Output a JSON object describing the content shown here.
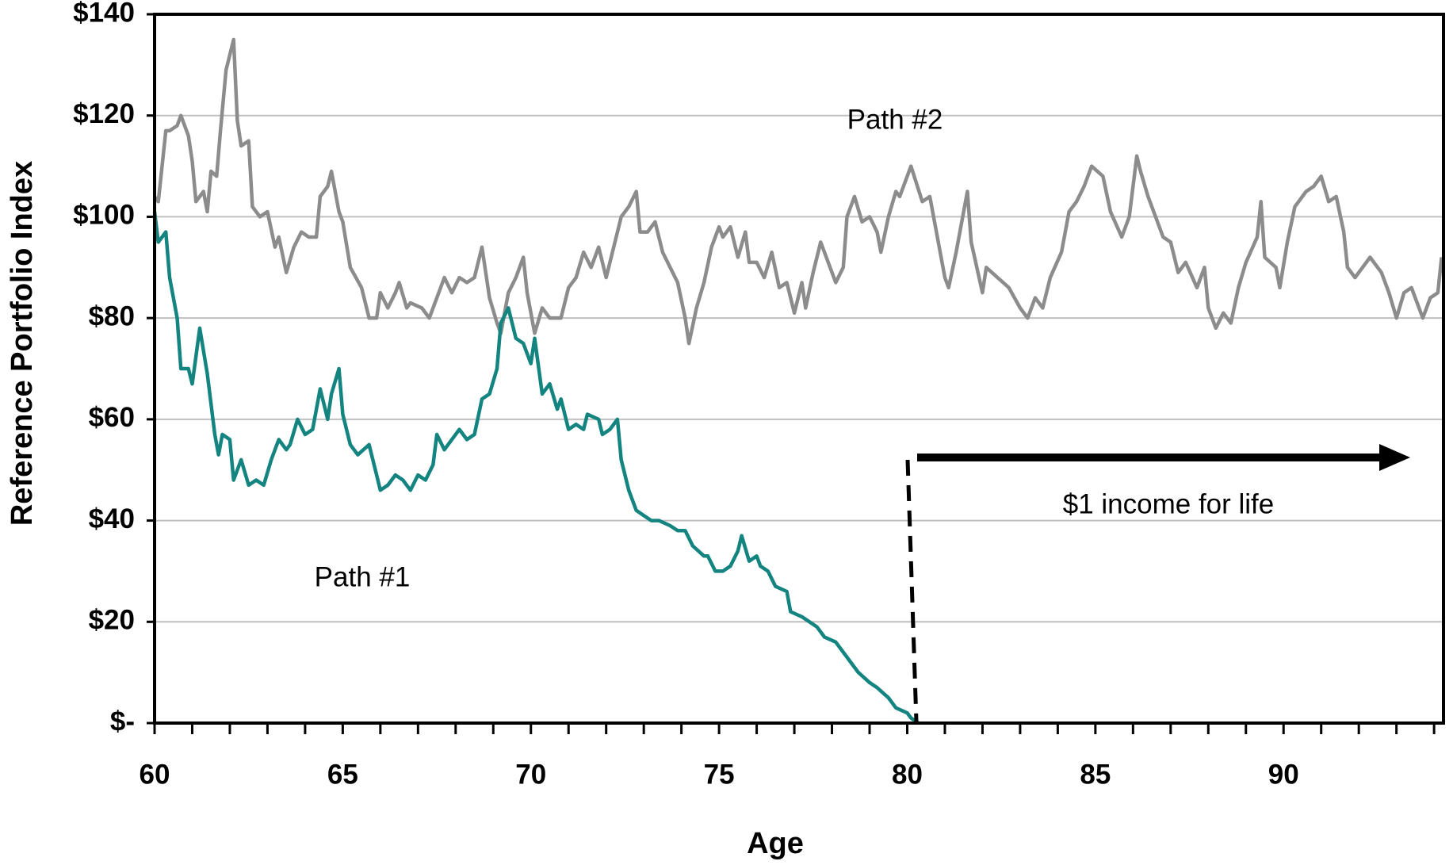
{
  "chart_data": {
    "type": "line",
    "xlabel": "Age",
    "ylabel": "Reference Portfolio Index",
    "xlim": [
      60,
      94.25
    ],
    "xticks": [
      60,
      65,
      70,
      75,
      80,
      85,
      90
    ],
    "xminor_ticks": [
      61,
      62,
      63,
      64,
      66,
      67,
      68,
      69,
      71,
      72,
      73,
      74,
      76,
      77,
      78,
      79,
      81,
      82,
      83,
      84,
      86,
      87,
      88,
      89,
      91,
      92,
      93,
      94
    ],
    "ylim": [
      0,
      140
    ],
    "yticks": [
      {
        "value": 0,
        "label": "$-"
      },
      {
        "value": 20,
        "label": "$20"
      },
      {
        "value": 40,
        "label": "$40"
      },
      {
        "value": 60,
        "label": "$60"
      },
      {
        "value": 80,
        "label": "$80"
      },
      {
        "value": 100,
        "label": "$100"
      },
      {
        "value": 120,
        "label": "$120"
      },
      {
        "value": 140,
        "label": "$140"
      }
    ],
    "grid": true,
    "annotations": [
      "Path #2",
      "Path #1",
      "$1 income for life"
    ],
    "series": [
      {
        "name": "Path #2",
        "color": "#8c8c8c",
        "x": [
          60.0,
          60.1,
          60.3,
          60.4,
          60.6,
          60.7,
          60.9,
          61.0,
          61.1,
          61.3,
          61.4,
          61.5,
          61.65,
          61.75,
          61.9,
          62.1,
          62.2,
          62.3,
          62.5,
          62.6,
          62.8,
          63.0,
          63.2,
          63.3,
          63.5,
          63.7,
          63.9,
          64.1,
          64.3,
          64.4,
          64.6,
          64.7,
          64.9,
          65.0,
          65.2,
          65.5,
          65.7,
          65.9,
          66.0,
          66.2,
          66.4,
          66.5,
          66.7,
          66.8,
          67.1,
          67.3,
          67.5,
          67.7,
          67.9,
          68.1,
          68.3,
          68.5,
          68.7,
          68.9,
          69.1,
          69.2,
          69.4,
          69.6,
          69.8,
          69.9,
          70.1,
          70.3,
          70.5,
          70.8,
          71.0,
          71.2,
          71.4,
          71.6,
          71.8,
          72.0,
          72.2,
          72.4,
          72.6,
          72.8,
          72.9,
          73.1,
          73.3,
          73.5,
          73.7,
          73.9,
          74.1,
          74.2,
          74.4,
          74.6,
          74.8,
          75.0,
          75.1,
          75.3,
          75.5,
          75.7,
          75.8,
          76.0,
          76.2,
          76.4,
          76.6,
          76.8,
          77.0,
          77.2,
          77.3,
          77.5,
          77.7,
          77.9,
          78.1,
          78.3,
          78.4,
          78.6,
          78.8,
          79.0,
          79.2,
          79.3,
          79.5,
          79.7,
          79.8,
          80.0,
          80.1,
          80.4,
          80.6,
          80.8,
          81.0,
          81.1,
          81.3,
          81.6,
          81.7,
          82.0,
          82.1,
          82.4,
          82.7,
          83.0,
          83.2,
          83.4,
          83.6,
          83.8,
          84.1,
          84.3,
          84.5,
          84.7,
          84.9,
          85.2,
          85.4,
          85.7,
          85.9,
          86.1,
          86.2,
          86.4,
          86.6,
          86.8,
          87.0,
          87.2,
          87.4,
          87.7,
          87.9,
          88.0,
          88.2,
          88.4,
          88.6,
          88.8,
          89.0,
          89.3,
          89.4,
          89.5,
          89.8,
          89.9,
          90.1,
          90.3,
          90.6,
          90.8,
          91.0,
          91.2,
          91.4,
          91.6,
          91.7,
          91.9,
          92.1,
          92.3,
          92.6,
          92.8,
          93.0,
          93.2,
          93.4,
          93.7,
          93.9,
          94.1,
          94.2
        ],
        "values": [
          104,
          103,
          117,
          117,
          118,
          120,
          116,
          111,
          103,
          105,
          101,
          109,
          108,
          117,
          129,
          135,
          119,
          114,
          115,
          102,
          100,
          101,
          94,
          96,
          89,
          94,
          97,
          96,
          96,
          104,
          106,
          109,
          101,
          99,
          90,
          86,
          80,
          80,
          85,
          82,
          85,
          87,
          82,
          83,
          82,
          80,
          84,
          88,
          85,
          88,
          87,
          88,
          94,
          84,
          79,
          77,
          85,
          88,
          92,
          85,
          77,
          82,
          80,
          80,
          86,
          88,
          93,
          90,
          94,
          88,
          94,
          100,
          102,
          105,
          97,
          97,
          99,
          93,
          90,
          87,
          80,
          75,
          82,
          87,
          94,
          98,
          96,
          98,
          92,
          97,
          91,
          91,
          88,
          93,
          86,
          87,
          81,
          87,
          82,
          89,
          95,
          91,
          87,
          90,
          100,
          104,
          99,
          100,
          97,
          93,
          100,
          105,
          104,
          108,
          110,
          103,
          104,
          96,
          88,
          86,
          93,
          105,
          95,
          85,
          90,
          88,
          86,
          82,
          80,
          84,
          82,
          88,
          93,
          101,
          103,
          106,
          110,
          108,
          101,
          96,
          100,
          112,
          109,
          104,
          100,
          96,
          95,
          89,
          91,
          86,
          90,
          82,
          78,
          81,
          79,
          86,
          91,
          96,
          103,
          92,
          90,
          86,
          95,
          102,
          105,
          106,
          108,
          103,
          104,
          97,
          90,
          88,
          90,
          92,
          89,
          85,
          80,
          85,
          86,
          80,
          84,
          85,
          92
        ]
      },
      {
        "name": "Path #1",
        "color": "#13847f",
        "x": [
          60.0,
          60.1,
          60.3,
          60.4,
          60.6,
          60.7,
          60.9,
          61.0,
          61.2,
          61.4,
          61.6,
          61.7,
          61.8,
          62.0,
          62.1,
          62.3,
          62.5,
          62.7,
          62.9,
          63.1,
          63.3,
          63.5,
          63.6,
          63.8,
          64.0,
          64.2,
          64.4,
          64.6,
          64.7,
          64.9,
          65.0,
          65.2,
          65.4,
          65.7,
          65.9,
          66.0,
          66.2,
          66.4,
          66.6,
          66.8,
          67.0,
          67.2,
          67.4,
          67.5,
          67.7,
          67.9,
          68.1,
          68.3,
          68.5,
          68.7,
          68.9,
          69.1,
          69.2,
          69.4,
          69.6,
          69.8,
          70.0,
          70.1,
          70.3,
          70.5,
          70.7,
          70.8,
          71.0,
          71.2,
          71.4,
          71.5,
          71.8,
          71.9,
          72.1,
          72.3,
          72.4,
          72.6,
          72.8,
          73.0,
          73.2,
          73.4,
          73.7,
          73.9,
          74.1,
          74.3,
          74.6,
          74.7,
          74.9,
          75.1,
          75.3,
          75.5,
          75.6,
          75.8,
          76.0,
          76.1,
          76.3,
          76.5,
          76.8,
          76.9,
          77.2,
          77.4,
          77.6,
          77.8,
          78.1,
          78.3,
          78.5,
          78.7,
          79.0,
          79.2,
          79.5,
          79.7,
          80.0,
          80.1,
          80.3
        ],
        "values": [
          101,
          95,
          97,
          88,
          80,
          70,
          70,
          67,
          78,
          69,
          57,
          53,
          57,
          56,
          48,
          52,
          47,
          48,
          47,
          52,
          56,
          54,
          55,
          60,
          57,
          58,
          66,
          60,
          65,
          70,
          61,
          55,
          53,
          55,
          49,
          46,
          47,
          49,
          48,
          46,
          49,
          48,
          51,
          57,
          54,
          56,
          58,
          56,
          57,
          64,
          65,
          70,
          79,
          82,
          76,
          75,
          71,
          76,
          65,
          67,
          62,
          64,
          58,
          59,
          58,
          61,
          60,
          57,
          58,
          60,
          52,
          46,
          42,
          41,
          40,
          40,
          39,
          38,
          38,
          35,
          33,
          33,
          30,
          30,
          31,
          34,
          37,
          32,
          33,
          31,
          30,
          27,
          26,
          22,
          21,
          20,
          19,
          17,
          16,
          14,
          12,
          10,
          8,
          7,
          5,
          3,
          2,
          1,
          0
        ]
      }
    ]
  }
}
